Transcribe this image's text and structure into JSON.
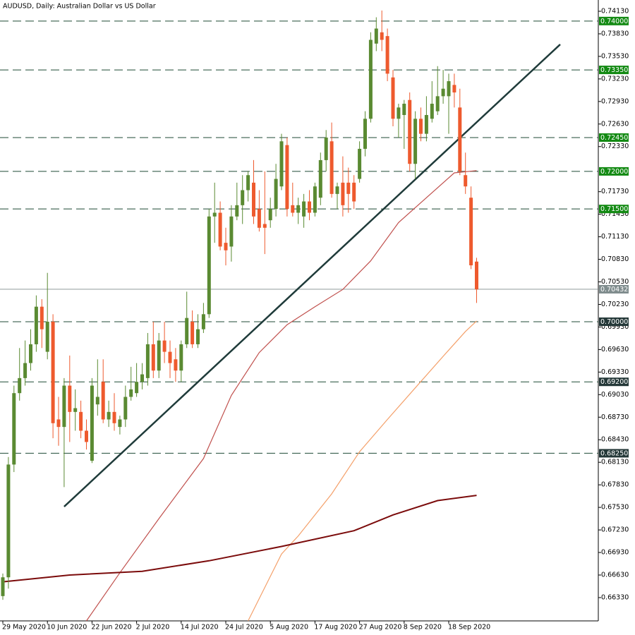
{
  "chart_data": {
    "type": "candlestick",
    "title": "AUDUSD, Daily:  Australian Dollar vs US Dollar",
    "categories": [
      "29 May 2020",
      null,
      null,
      null,
      null,
      null,
      null,
      null,
      "10 Jun 2020",
      null,
      null,
      null,
      null,
      null,
      null,
      null,
      "22 Jun 2020",
      null,
      null,
      null,
      null,
      null,
      null,
      null,
      "2 Jul 2020",
      null,
      null,
      null,
      null,
      null,
      null,
      null,
      "14 Jul 2020",
      null,
      null,
      null,
      null,
      null,
      null,
      null,
      "24 Jul 2020",
      null,
      null,
      null,
      null,
      null,
      null,
      null,
      "5 Aug 2020",
      null,
      null,
      null,
      null,
      null,
      null,
      null,
      "17 Aug 2020",
      null,
      null,
      null,
      null,
      null,
      null,
      null,
      "27 Aug 2020",
      null,
      null,
      null,
      null,
      null,
      null,
      null,
      "8 Sep 2020",
      null,
      null,
      null,
      null,
      null,
      null,
      null,
      "18 Sep 2020",
      null,
      null,
      null,
      null,
      null
    ],
    "open": [
      0.6635,
      0.666,
      0.681,
      0.6905,
      0.6925,
      0.6945,
      0.697,
      0.702,
      0.696,
      0.7,
      0.687,
      0.686,
      0.6915,
      0.688,
      0.688,
      0.6855,
      0.6815,
      0.689,
      0.692,
      0.687,
      0.688,
      0.686,
      0.687,
      0.69,
      0.6905,
      0.692,
      0.6925,
      0.697,
      0.6935,
      0.6975,
      0.696,
      0.695,
      0.6935,
      0.697,
      0.7,
      0.697,
      0.699,
      0.701,
      0.714,
      0.7145,
      0.7105,
      0.71,
      0.714,
      0.7155,
      0.7175,
      0.7185,
      0.715,
      0.713,
      0.7135,
      0.715,
      0.718,
      0.7235,
      0.7155,
      0.7145,
      0.714,
      0.716,
      0.7145,
      0.7165,
      0.7215,
      0.724,
      0.717,
      0.7185,
      0.7185,
      0.7185,
      0.719,
      0.723,
      0.727,
      0.737,
      0.7385,
      0.738,
      0.7325,
      0.727,
      0.7275,
      0.7295,
      0.721,
      0.727,
      0.725,
      0.727,
      0.728,
      0.73,
      0.73,
      0.7315,
      0.7285,
      0.7195,
      0.7165,
      0.708
    ],
    "high": [
      0.6665,
      0.682,
      0.6915,
      0.6965,
      0.6975,
      0.699,
      0.7035,
      0.703,
      0.7065,
      0.701,
      0.69,
      0.6925,
      0.6955,
      0.691,
      0.6895,
      0.687,
      0.6925,
      0.695,
      0.695,
      0.6895,
      0.6905,
      0.6875,
      0.6915,
      0.694,
      0.6945,
      0.6945,
      0.6985,
      0.7,
      0.6985,
      0.7,
      0.6975,
      0.6965,
      0.6975,
      0.704,
      0.7015,
      0.701,
      0.7025,
      0.715,
      0.7185,
      0.716,
      0.7125,
      0.7155,
      0.7185,
      0.7195,
      0.72,
      0.7215,
      0.7175,
      0.72,
      0.7165,
      0.721,
      0.725,
      0.7245,
      0.7185,
      0.7165,
      0.717,
      0.7175,
      0.7185,
      0.7225,
      0.7255,
      0.7265,
      0.7185,
      0.722,
      0.7205,
      0.7195,
      0.724,
      0.728,
      0.7385,
      0.7405,
      0.7414,
      0.739,
      0.7335,
      0.729,
      0.7295,
      0.7305,
      0.728,
      0.7285,
      0.73,
      0.732,
      0.734,
      0.7335,
      0.733,
      0.733,
      0.731,
      0.7225,
      0.718,
      0.7085
    ],
    "low": [
      0.663,
      0.6645,
      0.68,
      0.6895,
      0.6915,
      0.6935,
      0.696,
      0.6965,
      0.695,
      0.6845,
      0.6835,
      0.678,
      0.684,
      0.6855,
      0.6845,
      0.683,
      0.6812,
      0.6875,
      0.6865,
      0.686,
      0.6855,
      0.685,
      0.686,
      0.6895,
      0.69,
      0.691,
      0.6915,
      0.6925,
      0.6925,
      0.6945,
      0.6925,
      0.692,
      0.692,
      0.6965,
      0.6965,
      0.6965,
      0.6985,
      0.7005,
      0.7105,
      0.7095,
      0.7075,
      0.708,
      0.7135,
      0.713,
      0.716,
      0.713,
      0.712,
      0.709,
      0.7125,
      0.714,
      0.7175,
      0.714,
      0.714,
      0.713,
      0.7125,
      0.7135,
      0.714,
      0.7155,
      0.72,
      0.7165,
      0.715,
      0.714,
      0.7145,
      0.715,
      0.7185,
      0.722,
      0.7265,
      0.736,
      0.736,
      0.732,
      0.726,
      0.7245,
      0.723,
      0.72,
      0.719,
      0.724,
      0.724,
      0.7265,
      0.7275,
      0.729,
      0.725,
      0.7285,
      0.7195,
      0.717,
      0.707,
      0.7025
    ],
    "close": [
      0.666,
      0.681,
      0.6905,
      0.6925,
      0.6945,
      0.697,
      0.702,
      0.699,
      0.7,
      0.6865,
      0.686,
      0.6915,
      0.688,
      0.6885,
      0.6855,
      0.684,
      0.6915,
      0.69,
      0.687,
      0.688,
      0.6865,
      0.687,
      0.69,
      0.691,
      0.692,
      0.693,
      0.697,
      0.6935,
      0.6975,
      0.696,
      0.6945,
      0.6935,
      0.697,
      0.7005,
      0.697,
      0.699,
      0.701,
      0.714,
      0.7145,
      0.71,
      0.7095,
      0.714,
      0.7155,
      0.7175,
      0.7195,
      0.714,
      0.7125,
      0.7125,
      0.715,
      0.719,
      0.724,
      0.715,
      0.7145,
      0.7155,
      0.716,
      0.7145,
      0.718,
      0.7215,
      0.7245,
      0.717,
      0.718,
      0.7155,
      0.717,
      0.716,
      0.723,
      0.727,
      0.7375,
      0.739,
      0.7375,
      0.733,
      0.727,
      0.7285,
      0.729,
      0.721,
      0.727,
      0.725,
      0.7275,
      0.729,
      0.73,
      0.731,
      0.732,
      0.7305,
      0.72,
      0.718,
      0.7075,
      0.7043
    ],
    "up_color": "#5a8a32",
    "down_color": "#ee5a2e",
    "moving_averages": [
      {
        "color": "#c0504d",
        "x": [
          15,
          21,
          28,
          36,
          41,
          46,
          51,
          56,
          61,
          66,
          71,
          76,
          81,
          85
        ],
        "values": [
          0.6602,
          0.6666,
          0.6738,
          0.6818,
          0.6902,
          0.6959,
          0.6996,
          0.702,
          0.7043,
          0.7081,
          0.7132,
          0.7165,
          0.7198,
          0.7201
        ]
      },
      {
        "color": "#f4a06a",
        "x": [
          44,
          50,
          53,
          59,
          64,
          69,
          74,
          79,
          83,
          85
        ],
        "values": [
          0.6602,
          0.6691,
          0.6715,
          0.6771,
          0.6827,
          0.687,
          0.6912,
          0.6954,
          0.6987,
          0.7001
        ]
      },
      {
        "color": "#7b0b0b",
        "x": [
          0,
          12,
          25,
          37,
          50,
          63,
          70,
          78,
          85
        ],
        "values": [
          0.6654,
          0.6663,
          0.6668,
          0.6682,
          0.6701,
          0.6722,
          0.6743,
          0.6762,
          0.6769
        ]
      }
    ],
    "trendline": {
      "color": "#1f3b3a",
      "x": [
        11,
        100
      ],
      "values": [
        0.6754,
        0.7369
      ]
    },
    "levels": [
      {
        "value": 0.74,
        "label": "0.74000",
        "color": "#138a13"
      },
      {
        "value": 0.7335,
        "label": "0.73350",
        "color": "#138a13"
      },
      {
        "value": 0.7245,
        "label": "0.72450",
        "color": "#138a13"
      },
      {
        "value": 0.72,
        "label": "0.72000",
        "color": "#138a13"
      },
      {
        "value": 0.715,
        "label": "0.71500",
        "color": "#138a13"
      },
      {
        "value": 0.7,
        "label": "0.70000",
        "color": "#243838"
      },
      {
        "value": 0.692,
        "label": "0.69200",
        "color": "#243838"
      },
      {
        "value": 0.6825,
        "label": "0.68250",
        "color": "#243838"
      }
    ],
    "current_price": {
      "value": 0.70432,
      "label": "0.70432",
      "color": "#7f8c8d"
    },
    "ylim": [
      0.6602,
      0.7428
    ],
    "yticks": [
      {
        "value": 0.7413,
        "label": "0.74130"
      },
      {
        "value": 0.7383,
        "label": "0.73830"
      },
      {
        "value": 0.7353,
        "label": "0.73530"
      },
      {
        "value": 0.7323,
        "label": "0.73230"
      },
      {
        "value": 0.7293,
        "label": "0.72930"
      },
      {
        "value": 0.7263,
        "label": "0.72630"
      },
      {
        "value": 0.7233,
        "label": "0.72330"
      },
      {
        "value": 0.7173,
        "label": "0.71730"
      },
      {
        "value": 0.7143,
        "label": "0.71430"
      },
      {
        "value": 0.7113,
        "label": "0.71130"
      },
      {
        "value": 0.7083,
        "label": "0.70830"
      },
      {
        "value": 0.7053,
        "label": "0.70530"
      },
      {
        "value": 0.7023,
        "label": "0.70230"
      },
      {
        "value": 0.6993,
        "label": "0.69930"
      },
      {
        "value": 0.6963,
        "label": "0.69630"
      },
      {
        "value": 0.6933,
        "label": "0.69330"
      },
      {
        "value": 0.6903,
        "label": "0.69030"
      },
      {
        "value": 0.6873,
        "label": "0.68730"
      },
      {
        "value": 0.6843,
        "label": "0.68430"
      },
      {
        "value": 0.6813,
        "label": "0.68130"
      },
      {
        "value": 0.6783,
        "label": "0.67830"
      },
      {
        "value": 0.6753,
        "label": "0.67530"
      },
      {
        "value": 0.6723,
        "label": "0.67230"
      },
      {
        "value": 0.6693,
        "label": "0.66930"
      },
      {
        "value": 0.6663,
        "label": "0.66630"
      },
      {
        "value": 0.6633,
        "label": "0.66330"
      }
    ]
  }
}
